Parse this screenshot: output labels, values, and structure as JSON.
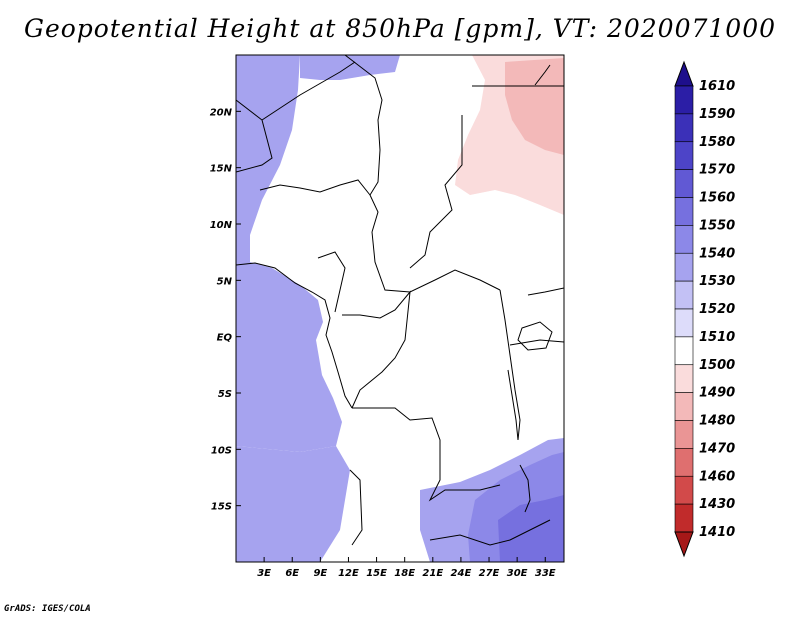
{
  "title": "Geopotential Height at 850hPa [gpm], VT: 2020071000",
  "credit": "GrADS: IGES/COLA",
  "map": {
    "lat_range": [
      -20,
      25
    ],
    "lon_range": [
      0,
      35
    ],
    "lat_ticks": [
      {
        "value": 20,
        "label": "20N"
      },
      {
        "value": 15,
        "label": "15N"
      },
      {
        "value": 10,
        "label": "10N"
      },
      {
        "value": 5,
        "label": "5N"
      },
      {
        "value": 0,
        "label": "EQ"
      },
      {
        "value": -5,
        "label": "5S"
      },
      {
        "value": -10,
        "label": "10S"
      },
      {
        "value": -15,
        "label": "15S"
      }
    ],
    "lon_ticks": [
      {
        "value": 3,
        "label": "3E"
      },
      {
        "value": 6,
        "label": "6E"
      },
      {
        "value": 9,
        "label": "9E"
      },
      {
        "value": 12,
        "label": "12E"
      },
      {
        "value": 15,
        "label": "15E"
      },
      {
        "value": 18,
        "label": "18E"
      },
      {
        "value": 21,
        "label": "21E"
      },
      {
        "value": 24,
        "label": "24E"
      },
      {
        "value": 27,
        "label": "27E"
      },
      {
        "value": 30,
        "label": "30E"
      },
      {
        "value": 33,
        "label": "33E"
      }
    ]
  },
  "colorbar": {
    "levels": [
      "1610",
      "1590",
      "1580",
      "1570",
      "1560",
      "1550",
      "1540",
      "1530",
      "1520",
      "1510",
      "1500",
      "1490",
      "1480",
      "1470",
      "1460",
      "1430",
      "1410"
    ],
    "colors": [
      "#1e0f8c",
      "#2b1ea6",
      "#3b30b8",
      "#4d44c8",
      "#6159d4",
      "#7670df",
      "#8c88e8",
      "#a6a3ef",
      "#c3c1f5",
      "#dddcfa",
      "#ffffff",
      "#fadcdc",
      "#f3b9b9",
      "#ea9595",
      "#df6f6f",
      "#d24a4a",
      "#c12b2b",
      "#a61818"
    ]
  },
  "regions": [
    {
      "name": "west-lavender",
      "level": 1530
    },
    {
      "name": "north-lavender",
      "level": 1530
    },
    {
      "name": "central-white",
      "level": 1515
    },
    {
      "name": "sahel-pink",
      "level": 1500
    },
    {
      "name": "sudan-pink-dark",
      "level": 1490
    },
    {
      "name": "ne-core",
      "level": 1480
    },
    {
      "name": "east-africa-pink",
      "level": 1500
    },
    {
      "name": "congo-pink",
      "level": 1500
    },
    {
      "name": "sw-coast-lavender",
      "level": 1530
    },
    {
      "name": "south-lavender",
      "level": 1530
    },
    {
      "name": "se-blue-1",
      "level": 1540
    },
    {
      "name": "se-blue-2",
      "level": 1550
    }
  ]
}
